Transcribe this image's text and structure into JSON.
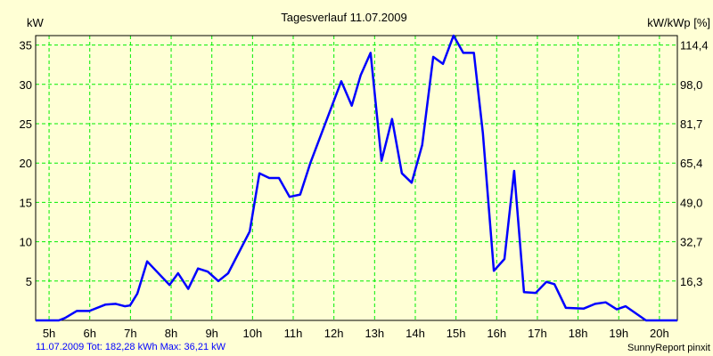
{
  "chart_data": {
    "type": "line",
    "title": "Tagesverlauf 11.07.2009",
    "ylabel": "kW",
    "ylabel_right": "kW/kWp [%]",
    "xlim": [
      4.67,
      20.44
    ],
    "ylim": [
      0,
      36.2
    ],
    "grid": true,
    "x_ticks": [
      5,
      6,
      7,
      8,
      9,
      10,
      11,
      12,
      13,
      14,
      15,
      16,
      17,
      18,
      19,
      20
    ],
    "x_tick_labels": [
      "5h",
      "6h",
      "7h",
      "8h",
      "9h",
      "10h",
      "11h",
      "12h",
      "13h",
      "14h",
      "15h",
      "16h",
      "17h",
      "18h",
      "19h",
      "20h"
    ],
    "y_ticks": [
      5,
      10,
      15,
      20,
      25,
      30,
      35
    ],
    "y_tick_labels": [
      "5",
      "10",
      "15",
      "20",
      "25",
      "30",
      "35"
    ],
    "y_right_tick_labels": [
      "16,3",
      "32,7",
      "49,0",
      "65,4",
      "81,7",
      "98,0",
      "114,4"
    ],
    "series": [
      {
        "name": "kW",
        "color": "#0000ff",
        "x": [
          4.67,
          5.24,
          5.39,
          5.68,
          5.99,
          6.38,
          6.64,
          6.86,
          6.99,
          7.17,
          7.41,
          7.96,
          8.17,
          8.42,
          8.66,
          8.9,
          9.16,
          9.4,
          9.93,
          10.17,
          10.41,
          10.65,
          10.91,
          11.17,
          11.42,
          12.18,
          12.44,
          12.66,
          12.9,
          13.17,
          13.43,
          13.67,
          13.91,
          14.17,
          14.44,
          14.68,
          14.94,
          15.18,
          15.44,
          15.66,
          15.93,
          16.19,
          16.43,
          16.67,
          16.96,
          17.22,
          17.42,
          17.7,
          18.14,
          18.42,
          18.68,
          18.95,
          19.17,
          19.67,
          20.44
        ],
        "values": [
          0,
          0,
          0.3,
          1.2,
          1.2,
          2.0,
          2.1,
          1.8,
          1.9,
          3.4,
          7.5,
          4.5,
          6.0,
          4.0,
          6.6,
          6.2,
          5.0,
          6.0,
          11.3,
          18.7,
          18.1,
          18.1,
          15.7,
          16.0,
          20.0,
          30.4,
          27.3,
          31.2,
          34.0,
          20.3,
          25.6,
          18.7,
          17.5,
          22.3,
          33.5,
          32.6,
          36.2,
          34.0,
          34.0,
          23.8,
          6.3,
          7.8,
          19.0,
          3.6,
          3.5,
          4.9,
          4.6,
          1.6,
          1.5,
          2.1,
          2.3,
          1.4,
          1.8,
          0,
          0
        ]
      }
    ],
    "footer": "11.07.2009 Tot: 182,28 kWh Max: 36,21 kW",
    "credit": "SunnyReport pinxit",
    "colors": {
      "background": "#ffffd5",
      "grid": "#00ee00",
      "line": "#0000ff"
    }
  }
}
